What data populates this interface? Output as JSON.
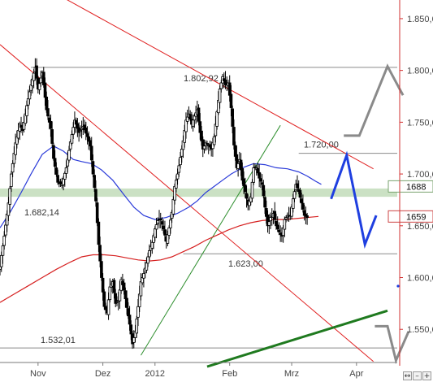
{
  "chart_data": {
    "type": "candlestick",
    "y_ticks": [
      {
        "value": 1550,
        "label": "1.550,00"
      },
      {
        "value": 1600,
        "label": "1.600,00"
      },
      {
        "value": 1650,
        "label": "1.650,00"
      },
      {
        "value": 1700,
        "label": "1.700,00"
      },
      {
        "value": 1750,
        "label": "1.750,00"
      },
      {
        "value": 1800,
        "label": "1.800,00"
      },
      {
        "value": 1850,
        "label": "1.850,00"
      }
    ],
    "ylim": [
      1518,
      1868
    ],
    "x_ticks": [
      {
        "day": 27,
        "label": "Nov"
      },
      {
        "day": 73,
        "label": "Dez"
      },
      {
        "day": 110,
        "label": "2012"
      },
      {
        "day": 163,
        "label": "Feb"
      },
      {
        "day": 207,
        "label": "Mrz"
      },
      {
        "day": 253,
        "label": "Apr"
      }
    ],
    "xlim": [
      0,
      290
    ],
    "level_lines": [
      {
        "value": 1802.92,
        "label": "1.802,92",
        "x_start": 22
      },
      {
        "value": 1720.0,
        "label": "1.720,00",
        "x_start": 212
      },
      {
        "value": 1623.0,
        "label": "1.623,00",
        "x_start": 130
      },
      {
        "value": 1532.01,
        "label": "1.532,01",
        "x_start": 0
      }
    ],
    "support_zone": {
      "low": 1678,
      "high": 1686,
      "label": "1.682,14"
    },
    "price_badges": [
      {
        "value": 1688,
        "label": "1688"
      },
      {
        "value": 1659,
        "label": "1659"
      }
    ],
    "trend_lines_red": [
      {
        "from": [
          0,
          1904
        ],
        "to": [
          265,
          1705
        ]
      },
      {
        "from": [
          0,
          1825
        ],
        "to": [
          265,
          1519
        ]
      }
    ],
    "trend_lines_green": [
      {
        "from": [
          100,
          1525
        ],
        "to": [
          199,
          1747
        ]
      },
      {
        "from": [
          147,
          1514
        ],
        "to": [
          275,
          1568
        ]
      }
    ],
    "forecast_blue": [
      [
        235,
        1676
      ],
      [
        246,
        1718
      ],
      [
        259,
        1632
      ],
      [
        267,
        1660
      ]
    ],
    "forecast_gray": [
      [
        244,
        1737
      ],
      [
        255,
        1737
      ],
      [
        275,
        1804
      ],
      [
        286,
        1776
      ]
    ],
    "forecast_gray_lower": [
      [
        266,
        1553
      ],
      [
        275,
        1553
      ],
      [
        281,
        1520
      ],
      [
        290,
        1548
      ]
    ],
    "series": [
      {
        "name": "",
        "kind": "moving-average",
        "color": "#2b3bd9",
        "points": [
          [
            0,
            1648
          ],
          [
            8,
            1665
          ],
          [
            15,
            1682
          ],
          [
            22,
            1700
          ],
          [
            30,
            1719
          ],
          [
            38,
            1727
          ],
          [
            45,
            1722
          ],
          [
            52,
            1714
          ],
          [
            58,
            1712
          ],
          [
            65,
            1710
          ],
          [
            72,
            1704
          ],
          [
            80,
            1694
          ],
          [
            88,
            1680
          ],
          [
            95,
            1668
          ],
          [
            102,
            1660
          ],
          [
            110,
            1656
          ],
          [
            118,
            1658
          ],
          [
            126,
            1662
          ],
          [
            134,
            1668
          ],
          [
            140,
            1674
          ],
          [
            146,
            1682
          ],
          [
            152,
            1688
          ],
          [
            158,
            1694
          ],
          [
            164,
            1700
          ],
          [
            172,
            1706
          ],
          [
            180,
            1710
          ],
          [
            188,
            1709
          ],
          [
            196,
            1706
          ],
          [
            204,
            1705
          ],
          [
            212,
            1702
          ],
          [
            218,
            1698
          ],
          [
            224,
            1693
          ],
          [
            228,
            1690
          ]
        ]
      },
      {
        "name": "",
        "kind": "moving-average",
        "color": "#d62020",
        "points": [
          [
            0,
            1576
          ],
          [
            10,
            1584
          ],
          [
            20,
            1592
          ],
          [
            30,
            1600
          ],
          [
            40,
            1608
          ],
          [
            50,
            1615
          ],
          [
            58,
            1620
          ],
          [
            66,
            1622
          ],
          [
            74,
            1622
          ],
          [
            82,
            1621
          ],
          [
            90,
            1619
          ],
          [
            98,
            1617
          ],
          [
            106,
            1616
          ],
          [
            114,
            1617
          ],
          [
            122,
            1620
          ],
          [
            130,
            1625
          ],
          [
            138,
            1630
          ],
          [
            146,
            1636
          ],
          [
            154,
            1641
          ],
          [
            162,
            1646
          ],
          [
            170,
            1650
          ],
          [
            178,
            1653
          ],
          [
            186,
            1655
          ],
          [
            194,
            1656
          ],
          [
            202,
            1656
          ],
          [
            210,
            1657
          ],
          [
            218,
            1658
          ],
          [
            226,
            1659
          ]
        ]
      }
    ],
    "close_anchors": [
      [
        0,
        1612
      ],
      [
        3,
        1640
      ],
      [
        6,
        1672
      ],
      [
        8,
        1700
      ],
      [
        11,
        1730
      ],
      [
        14,
        1748
      ],
      [
        16,
        1742
      ],
      [
        19,
        1766
      ],
      [
        22,
        1786
      ],
      [
        25,
        1803
      ],
      [
        27,
        1782
      ],
      [
        30,
        1798
      ],
      [
        33,
        1762
      ],
      [
        36,
        1744
      ],
      [
        38,
        1715
      ],
      [
        41,
        1692
      ],
      [
        44,
        1690
      ],
      [
        47,
        1706
      ],
      [
        50,
        1731
      ],
      [
        53,
        1752
      ],
      [
        56,
        1740
      ],
      [
        59,
        1746
      ],
      [
        62,
        1736
      ],
      [
        64,
        1727
      ],
      [
        66,
        1700
      ],
      [
        68,
        1674
      ],
      [
        70,
        1632
      ],
      [
        72,
        1600
      ],
      [
        74,
        1572
      ],
      [
        76,
        1566
      ],
      [
        78,
        1591
      ],
      [
        80,
        1596
      ],
      [
        82,
        1575
      ],
      [
        84,
        1578
      ],
      [
        86,
        1598
      ],
      [
        88,
        1588
      ],
      [
        90,
        1571
      ],
      [
        92,
        1555
      ],
      [
        94,
        1536
      ],
      [
        96,
        1548
      ],
      [
        98,
        1572
      ],
      [
        100,
        1596
      ],
      [
        102,
        1604
      ],
      [
        104,
        1614
      ],
      [
        106,
        1626
      ],
      [
        108,
        1634
      ],
      [
        110,
        1647
      ],
      [
        112,
        1655
      ],
      [
        114,
        1656
      ],
      [
        116,
        1647
      ],
      [
        118,
        1635
      ],
      [
        120,
        1648
      ],
      [
        122,
        1663
      ],
      [
        124,
        1688
      ],
      [
        126,
        1700
      ],
      [
        128,
        1716
      ],
      [
        130,
        1732
      ],
      [
        132,
        1752
      ],
      [
        134,
        1758
      ],
      [
        136,
        1748
      ],
      [
        138,
        1756
      ],
      [
        140,
        1762
      ],
      [
        142,
        1740
      ],
      [
        144,
        1724
      ],
      [
        146,
        1730
      ],
      [
        148,
        1728
      ],
      [
        150,
        1724
      ],
      [
        152,
        1736
      ],
      [
        154,
        1760
      ],
      [
        156,
        1782
      ],
      [
        158,
        1794
      ],
      [
        160,
        1786
      ],
      [
        162,
        1788
      ],
      [
        164,
        1764
      ],
      [
        166,
        1728
      ],
      [
        168,
        1706
      ],
      [
        170,
        1714
      ],
      [
        172,
        1694
      ],
      [
        174,
        1683
      ],
      [
        176,
        1670
      ],
      [
        178,
        1678
      ],
      [
        180,
        1706
      ],
      [
        182,
        1706
      ],
      [
        184,
        1696
      ],
      [
        186,
        1690
      ],
      [
        188,
        1668
      ],
      [
        190,
        1650
      ],
      [
        192,
        1658
      ],
      [
        194,
        1662
      ],
      [
        196,
        1650
      ],
      [
        198,
        1644
      ],
      [
        200,
        1640
      ],
      [
        202,
        1656
      ],
      [
        204,
        1660
      ],
      [
        206,
        1660
      ],
      [
        208,
        1676
      ],
      [
        210,
        1690
      ],
      [
        212,
        1683
      ],
      [
        214,
        1672
      ],
      [
        216,
        1660
      ],
      [
        218,
        1658
      ]
    ]
  }
}
